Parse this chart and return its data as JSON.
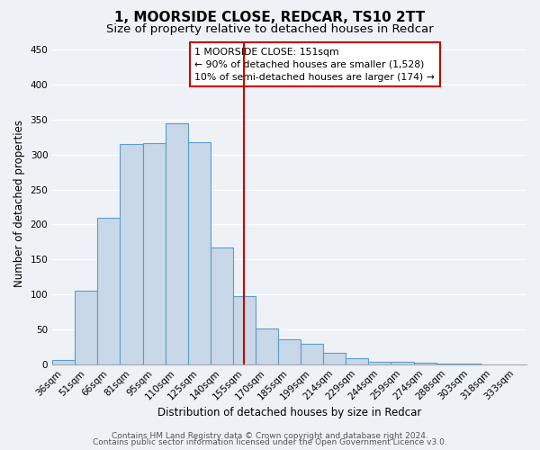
{
  "title": "1, MOORSIDE CLOSE, REDCAR, TS10 2TT",
  "subtitle": "Size of property relative to detached houses in Redcar",
  "xlabel": "Distribution of detached houses by size in Redcar",
  "ylabel": "Number of detached properties",
  "bar_values": [
    6,
    105,
    210,
    315,
    317,
    345,
    318,
    167,
    97,
    51,
    36,
    29,
    17,
    9,
    4,
    4,
    2,
    1,
    1,
    0,
    0
  ],
  "x_labels": [
    "36sqm",
    "51sqm",
    "66sqm",
    "81sqm",
    "95sqm",
    "110sqm",
    "125sqm",
    "140sqm",
    "155sqm",
    "170sqm",
    "185sqm",
    "199sqm",
    "214sqm",
    "229sqm",
    "244sqm",
    "259sqm",
    "274sqm",
    "288sqm",
    "303sqm",
    "318sqm",
    "333sqm"
  ],
  "bar_color": "#c8d8e8",
  "bar_edge_color": "#5a9fc8",
  "vline_x": 8,
  "vline_color": "#cc0000",
  "ylim": [
    0,
    460
  ],
  "yticks": [
    0,
    50,
    100,
    150,
    200,
    250,
    300,
    350,
    400,
    450
  ],
  "annotation_box_text": "1 MOORSIDE CLOSE: 151sqm\n← 90% of detached houses are smaller (1,528)\n10% of semi-detached houses are larger (174) →",
  "footer_line1": "Contains HM Land Registry data © Crown copyright and database right 2024.",
  "footer_line2": "Contains public sector information licensed under the Open Government Licence v3.0.",
  "bg_color": "#eef2f7",
  "grid_color": "#ffffff",
  "title_fontsize": 11,
  "subtitle_fontsize": 9.5,
  "axis_label_fontsize": 8.5,
  "tick_fontsize": 7.5,
  "footer_fontsize": 6.5
}
